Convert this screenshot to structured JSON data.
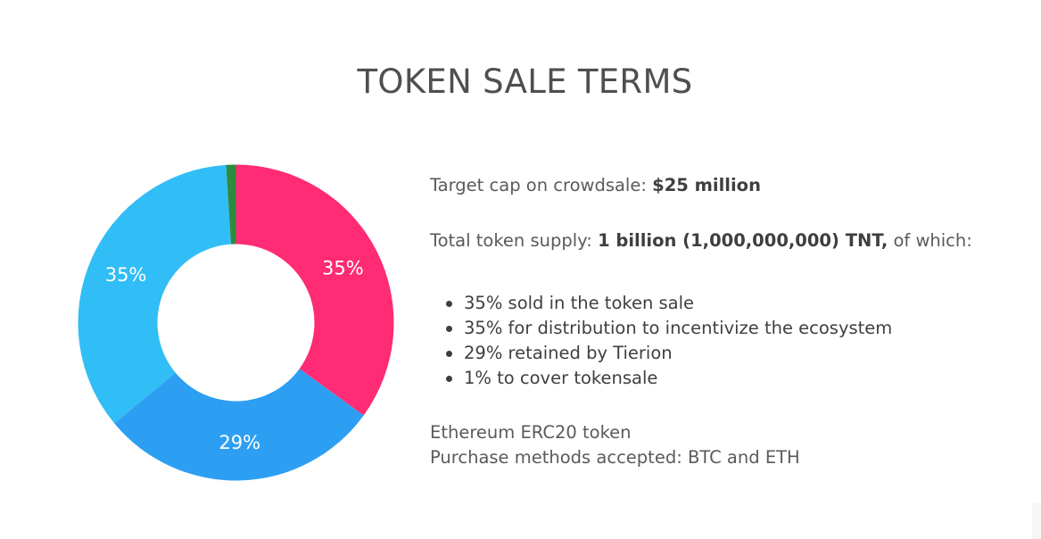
{
  "title": "TOKEN SALE TERMS",
  "chart_data": {
    "type": "pie",
    "donut": true,
    "start_angle_deg": -90,
    "slices": [
      {
        "label": "35%",
        "value": 35,
        "color": "#ff2b74",
        "show_label": true
      },
      {
        "label": "29%",
        "value": 29,
        "color": "#2d9ff3",
        "show_label": true
      },
      {
        "label": "35%",
        "value": 35,
        "color": "#31bdf5",
        "show_label": true
      },
      {
        "label": "1%",
        "value": 1,
        "color": "#2e8b3e",
        "show_label": false
      }
    ]
  },
  "info": {
    "target_cap_label": "Target cap on crowdsale: ",
    "target_cap_value": "$25 million",
    "supply_label": "Total token supply: ",
    "supply_value": "1 billion (1,000,000,000) TNT,",
    "supply_suffix": " of which:",
    "bullets": [
      "35% sold in the token sale",
      "35% for distribution to incentivize the ecosystem",
      "29% retained by Tierion",
      "1% to cover tokensale"
    ],
    "token_type": "Ethereum ERC20 token",
    "purchase_methods": "Purchase methods accepted: BTC and ETH"
  }
}
